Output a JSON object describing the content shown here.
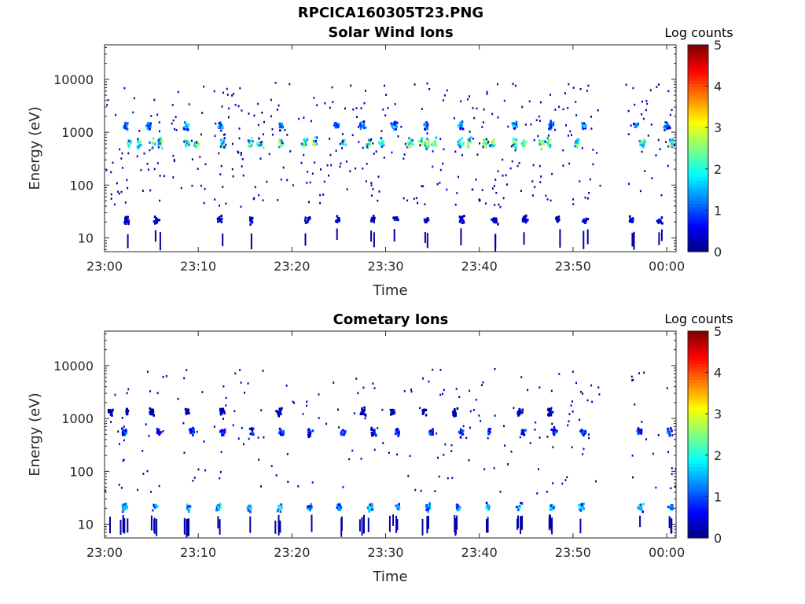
{
  "figure_title": "RPCICA160305T23.PNG",
  "chart_data": [
    {
      "type": "heatmap",
      "title": "Solar Wind Ions",
      "xlabel": "Time",
      "ylabel": "Energy (eV)",
      "xticks": [
        "23:00",
        "23:10",
        "23:20",
        "23:30",
        "23:40",
        "23:50",
        "00:00"
      ],
      "xlim": [
        "23:00",
        "00:01"
      ],
      "yscale": "log",
      "ylim": [
        5.5,
        45000
      ],
      "yticks": [
        10,
        100,
        1000,
        10000
      ],
      "ytick_labels": [
        "10",
        "100",
        "1000",
        "10000"
      ],
      "colorbar": {
        "label": "Log counts",
        "ticks": [
          0,
          1,
          2,
          3,
          4,
          5
        ],
        "tick_labels": [
          "0",
          "1",
          "2",
          "3",
          "4",
          "5"
        ],
        "colormap": "jet"
      },
      "bands": [
        {
          "energy": 650,
          "intensity": 2.8,
          "scans": [
            2.5,
            3.6,
            5.0,
            5.8,
            8.7,
            9.7,
            12.5,
            15.5,
            16.5,
            18.8,
            21.2,
            22.4,
            25.3,
            28.0,
            29.5,
            32.5,
            33.7,
            34.3,
            35.1,
            37.9,
            38.7,
            40.5,
            41.3,
            43.7,
            44.6,
            46.5,
            47.3,
            50.3,
            57.3,
            60.4
          ]
        },
        {
          "energy": 1400,
          "intensity": 1.7,
          "scans": [
            2.2,
            4.6,
            8.6,
            12.3,
            18.7,
            24.7,
            27.5,
            30.8,
            34.2,
            37.9,
            43.7,
            47.6,
            51.0,
            56.6,
            59.9
          ]
        },
        {
          "energy": 23,
          "intensity": 0.6,
          "scans": [
            2.2,
            5.5,
            12.2,
            15.5,
            21.5,
            24.8,
            28.5,
            31.0,
            34.2,
            38.0,
            41.5,
            44.8,
            48.2,
            51.2,
            56.2,
            59.2
          ]
        }
      ]
    },
    {
      "type": "heatmap",
      "title": "Cometary Ions",
      "xlabel": "Time",
      "ylabel": "Energy (eV)",
      "xticks": [
        "23:00",
        "23:10",
        "23:20",
        "23:30",
        "23:40",
        "23:50",
        "00:00"
      ],
      "xlim": [
        "23:00",
        "00:01"
      ],
      "yscale": "log",
      "ylim": [
        5.5,
        45000
      ],
      "yticks": [
        10,
        100,
        1000,
        10000
      ],
      "ytick_labels": [
        "10",
        "100",
        "1000",
        "10000"
      ],
      "colorbar": {
        "label": "Log counts",
        "ticks": [
          0,
          1,
          2,
          3,
          4,
          5
        ],
        "tick_labels": [
          "0",
          "1",
          "2",
          "3",
          "4",
          "5"
        ],
        "colormap": "jet"
      },
      "bands": [
        {
          "energy": 22,
          "intensity": 1.9,
          "scans": [
            2.0,
            5.3,
            8.9,
            12.0,
            15.4,
            18.6,
            21.8,
            25.0,
            28.3,
            31.2,
            34.4,
            37.6,
            40.8,
            44.2,
            47.6,
            50.8,
            57.1,
            60.3
          ]
        },
        {
          "energy": 580,
          "intensity": 1.1,
          "scans": [
            2.0,
            5.7,
            9.2,
            12.5,
            15.7,
            18.8,
            21.8,
            25.3,
            28.6,
            31.2,
            34.8,
            38.0,
            40.9,
            44.5,
            47.9,
            51.0,
            57.0,
            60.2
          ]
        },
        {
          "energy": 1400,
          "intensity": 0.5,
          "scans": [
            0.5,
            2.3,
            4.9,
            8.7,
            12.4,
            18.6,
            27.5,
            30.6,
            34.0,
            37.3,
            44.2,
            47.5
          ]
        }
      ]
    }
  ]
}
